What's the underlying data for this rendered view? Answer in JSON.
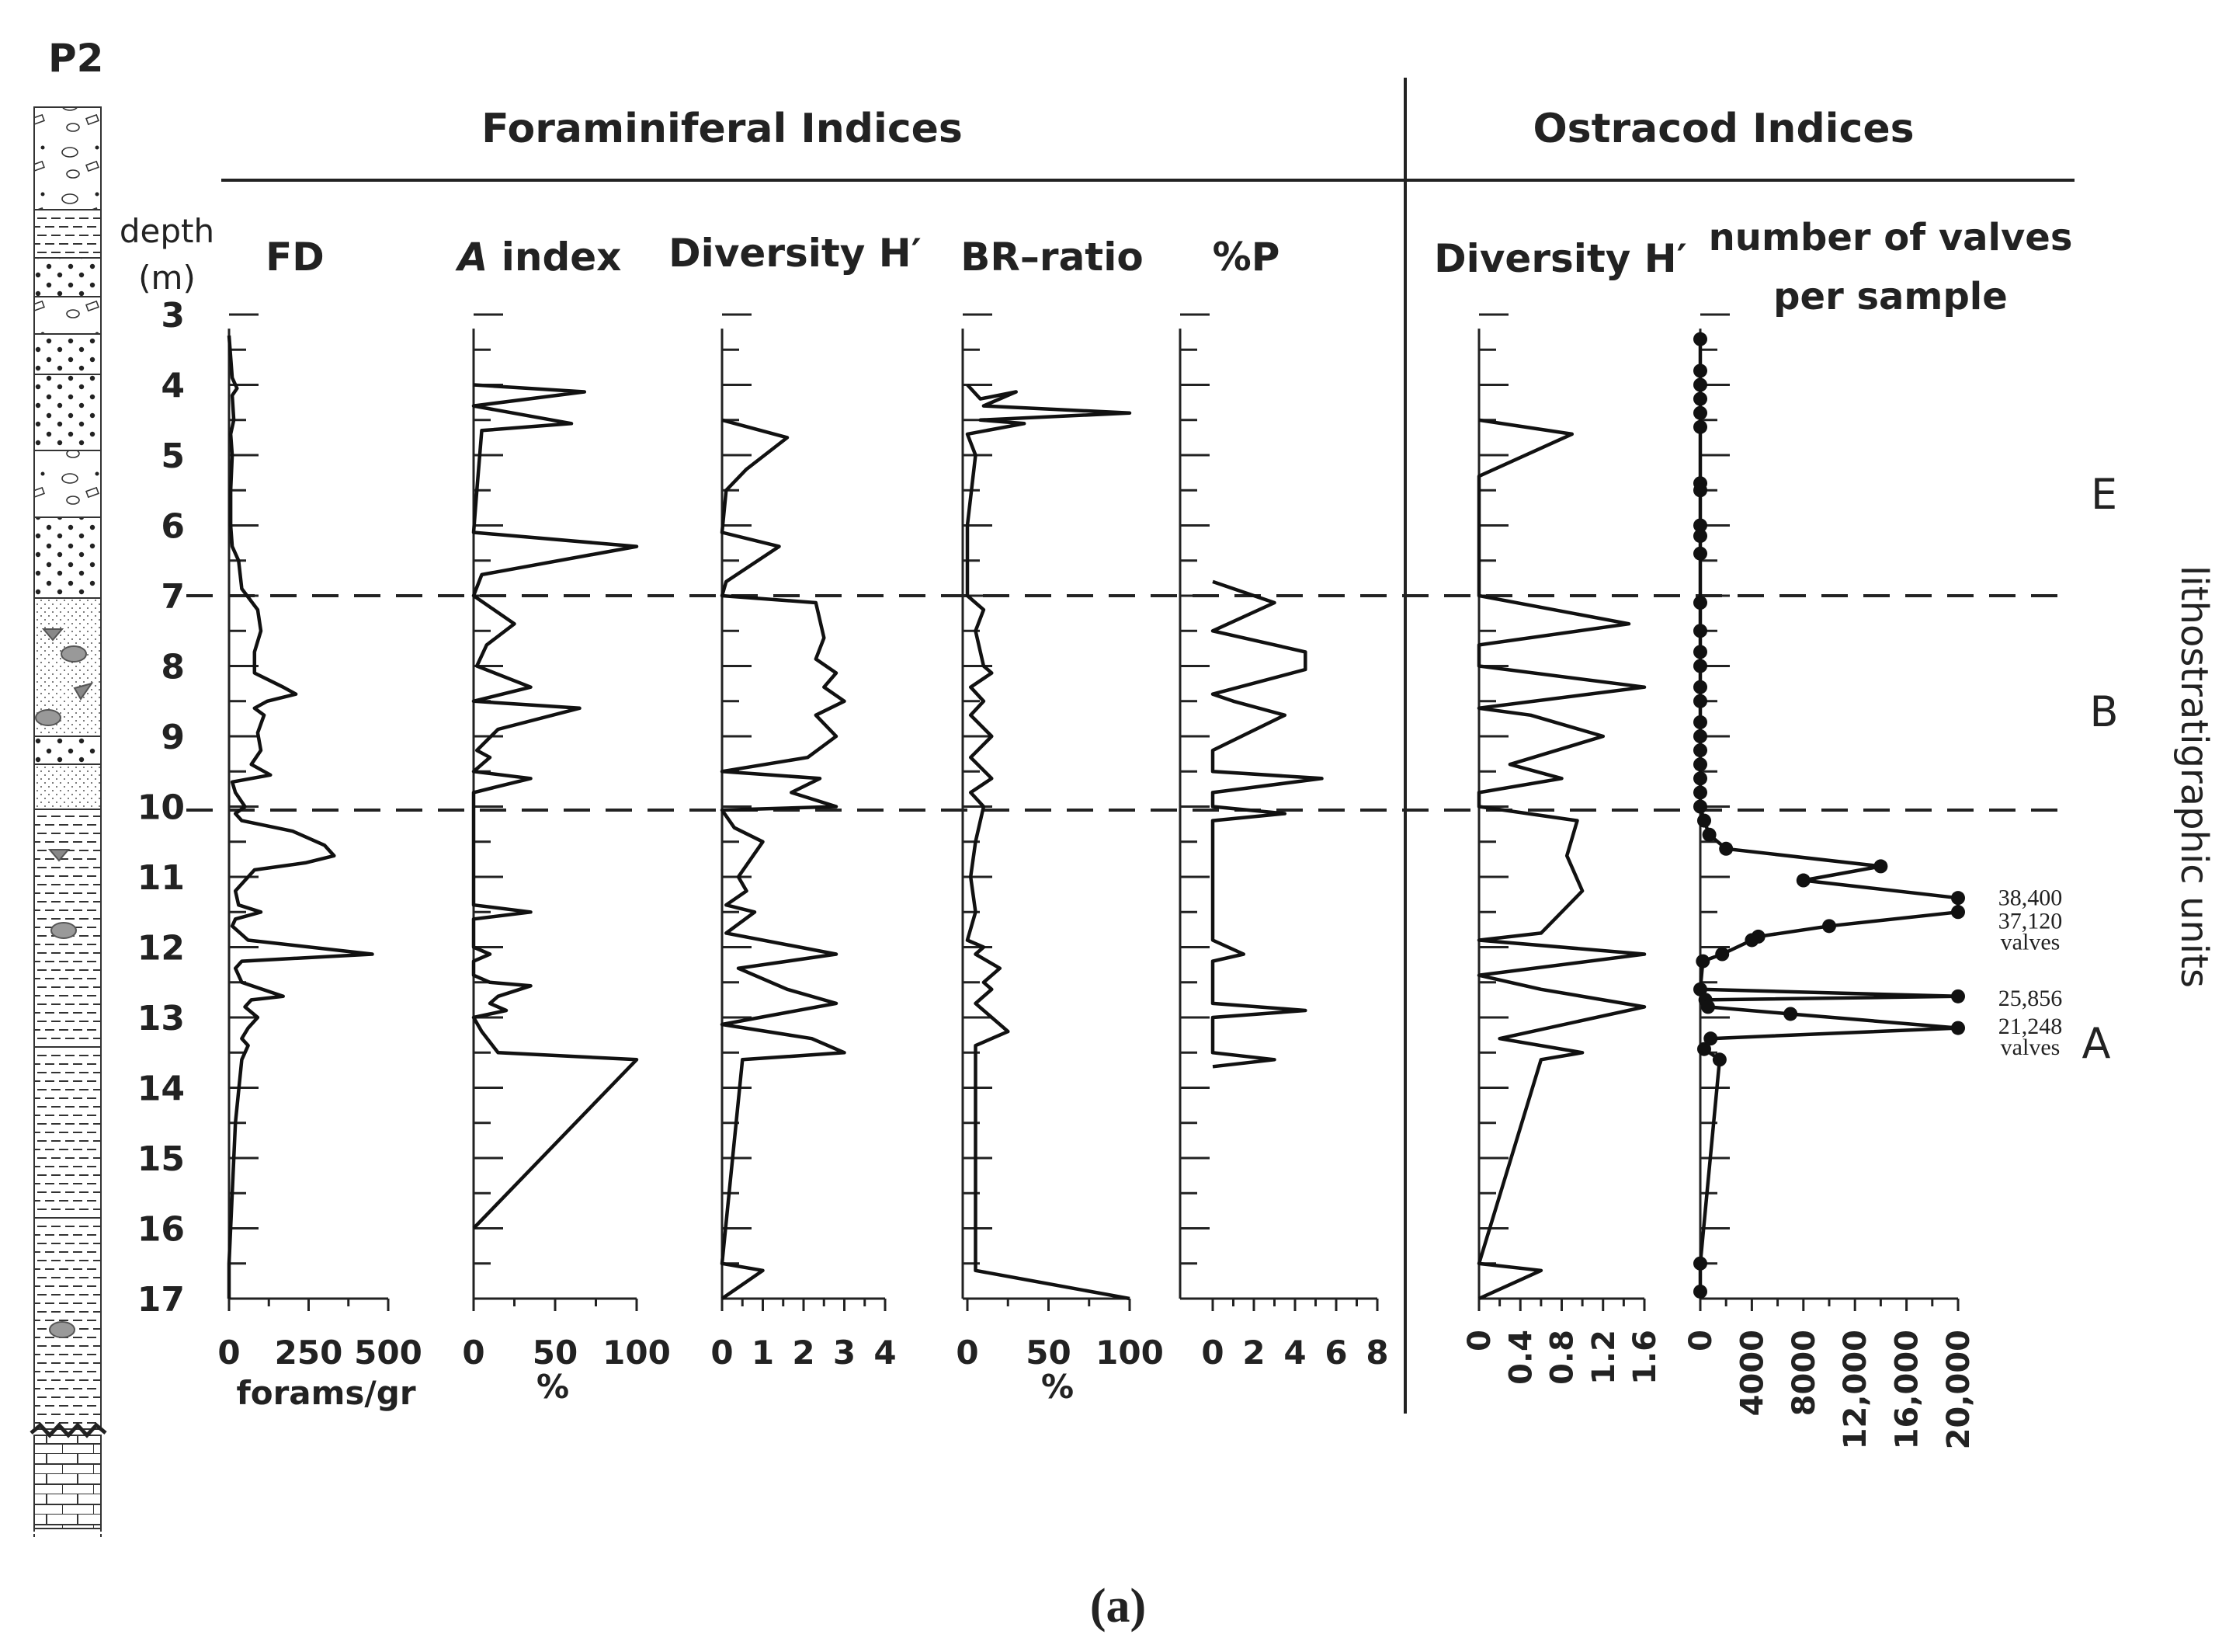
{
  "chart_data": {
    "type": "line",
    "panel_id": "P2",
    "caption": "(a)",
    "groups": [
      {
        "label": "Foraminiferal Indices"
      },
      {
        "label": "Ostracod Indices"
      }
    ],
    "depth_axis": {
      "label_line1": "depth",
      "label_line2": "(m)",
      "min": 3,
      "max": 17,
      "ticks": [
        3,
        4,
        5,
        6,
        7,
        8,
        9,
        10,
        11,
        12,
        13,
        14,
        15,
        16,
        17
      ]
    },
    "unit_boundaries": [
      7,
      10.05
    ],
    "units": [
      {
        "label": "E",
        "depth": 6.2
      },
      {
        "label": "B",
        "depth": 8.7
      },
      {
        "label": "A",
        "depth": 13.45
      }
    ],
    "units_label": "lithostratigraphic units",
    "series": [
      {
        "name": "FD",
        "title": "FD",
        "xlabel": "forams/gr",
        "xmin": 0,
        "xmax": 500,
        "ticks": [
          "0",
          "250",
          "500"
        ],
        "tick_values": [
          0,
          250,
          500
        ],
        "points": [
          [
            0,
            3.3
          ],
          [
            10,
            3.9
          ],
          [
            25,
            4.05
          ],
          [
            10,
            4.15
          ],
          [
            15,
            4.5
          ],
          [
            5,
            4.7
          ],
          [
            10,
            5.0
          ],
          [
            5,
            5.5
          ],
          [
            5,
            6.0
          ],
          [
            10,
            6.3
          ],
          [
            30,
            6.5
          ],
          [
            40,
            6.9
          ],
          [
            90,
            7.2
          ],
          [
            100,
            7.5
          ],
          [
            80,
            7.8
          ],
          [
            80,
            8.1
          ],
          [
            170,
            8.3
          ],
          [
            210,
            8.4
          ],
          [
            120,
            8.5
          ],
          [
            80,
            8.6
          ],
          [
            110,
            8.7
          ],
          [
            90,
            8.95
          ],
          [
            100,
            9.2
          ],
          [
            70,
            9.4
          ],
          [
            130,
            9.55
          ],
          [
            10,
            9.65
          ],
          [
            20,
            9.8
          ],
          [
            50,
            10.0
          ],
          [
            20,
            10.1
          ],
          [
            40,
            10.2
          ],
          [
            200,
            10.35
          ],
          [
            300,
            10.55
          ],
          [
            330,
            10.7
          ],
          [
            240,
            10.8
          ],
          [
            80,
            10.9
          ],
          [
            20,
            11.2
          ],
          [
            30,
            11.4
          ],
          [
            100,
            11.5
          ],
          [
            20,
            11.6
          ],
          [
            10,
            11.7
          ],
          [
            60,
            11.9
          ],
          [
            450,
            12.1
          ],
          [
            40,
            12.2
          ],
          [
            20,
            12.3
          ],
          [
            40,
            12.5
          ],
          [
            170,
            12.7
          ],
          [
            70,
            12.75
          ],
          [
            50,
            12.85
          ],
          [
            90,
            13.0
          ],
          [
            60,
            13.15
          ],
          [
            40,
            13.3
          ],
          [
            60,
            13.4
          ],
          [
            40,
            13.6
          ],
          [
            20,
            14.5
          ],
          [
            10,
            15.5
          ],
          [
            0,
            16.5
          ],
          [
            0,
            17.0
          ]
        ]
      },
      {
        "name": "A index",
        "title_prefix": "A",
        "title_rest": " index",
        "xlabel": "%",
        "xmin": 0,
        "xmax": 100,
        "ticks": [
          "0",
          "50",
          "100"
        ],
        "tick_values": [
          0,
          50,
          100
        ],
        "points": [
          [
            0,
            4.0
          ],
          [
            68,
            4.1
          ],
          [
            0,
            4.3
          ],
          [
            60,
            4.55
          ],
          [
            5,
            4.65
          ],
          [
            2,
            5.5
          ],
          [
            0,
            6.1
          ],
          [
            100,
            6.3
          ],
          [
            5,
            6.7
          ],
          [
            0,
            7.0
          ],
          [
            25,
            7.4
          ],
          [
            8,
            7.7
          ],
          [
            2,
            8.0
          ],
          [
            35,
            8.3
          ],
          [
            0,
            8.5
          ],
          [
            65,
            8.6
          ],
          [
            15,
            8.9
          ],
          [
            2,
            9.2
          ],
          [
            10,
            9.3
          ],
          [
            0,
            9.5
          ],
          [
            35,
            9.6
          ],
          [
            0,
            9.8
          ],
          [
            0,
            10.0
          ],
          [
            0,
            10.2
          ],
          [
            0,
            11.4
          ],
          [
            35,
            11.5
          ],
          [
            0,
            11.6
          ],
          [
            0,
            12.0
          ],
          [
            10,
            12.1
          ],
          [
            0,
            12.2
          ],
          [
            0,
            12.4
          ],
          [
            10,
            12.5
          ],
          [
            35,
            12.55
          ],
          [
            15,
            12.7
          ],
          [
            10,
            12.8
          ],
          [
            20,
            12.9
          ],
          [
            0,
            13.0
          ],
          [
            5,
            13.2
          ],
          [
            15,
            13.5
          ],
          [
            100,
            13.6
          ],
          [
            0,
            16.0
          ]
        ]
      },
      {
        "name": "Diversity H′ (foraminifera)",
        "title": "Diversity H′",
        "xmin": 0,
        "xmax": 4,
        "ticks": [
          "0",
          "1",
          "2",
          "3",
          "4"
        ],
        "tick_values": [
          0,
          1,
          2,
          3,
          4
        ],
        "points": [
          [
            0,
            4.5
          ],
          [
            1.6,
            4.75
          ],
          [
            0.6,
            5.2
          ],
          [
            0.1,
            5.5
          ],
          [
            0,
            6.1
          ],
          [
            1.4,
            6.3
          ],
          [
            0.1,
            6.8
          ],
          [
            0,
            7.0
          ],
          [
            2.3,
            7.1
          ],
          [
            2.5,
            7.6
          ],
          [
            2.3,
            7.9
          ],
          [
            2.8,
            8.1
          ],
          [
            2.5,
            8.3
          ],
          [
            3.0,
            8.5
          ],
          [
            2.3,
            8.7
          ],
          [
            2.8,
            9.0
          ],
          [
            2.1,
            9.3
          ],
          [
            0,
            9.5
          ],
          [
            2.4,
            9.6
          ],
          [
            1.7,
            9.8
          ],
          [
            2.8,
            10.0
          ],
          [
            0,
            10.05
          ],
          [
            0.3,
            10.3
          ],
          [
            1.0,
            10.5
          ],
          [
            0.4,
            11.0
          ],
          [
            0.6,
            11.2
          ],
          [
            0.1,
            11.4
          ],
          [
            0.8,
            11.5
          ],
          [
            0.1,
            11.8
          ],
          [
            2.8,
            12.1
          ],
          [
            0.4,
            12.3
          ],
          [
            1.6,
            12.6
          ],
          [
            2.5,
            12.75
          ],
          [
            2.8,
            12.8
          ],
          [
            0,
            13.1
          ],
          [
            2.2,
            13.3
          ],
          [
            3.0,
            13.5
          ],
          [
            0.5,
            13.6
          ],
          [
            0,
            16.5
          ],
          [
            1.0,
            16.6
          ],
          [
            0,
            17.0
          ]
        ]
      },
      {
        "name": "BR–ratio",
        "title": "BR–ratio",
        "xlabel": "%",
        "xmin": 0,
        "xmax": 100,
        "ticks": [
          "0",
          "50",
          "100"
        ],
        "tick_values": [
          0,
          50,
          100
        ],
        "points": [
          [
            0,
            4.0
          ],
          [
            8,
            4.2
          ],
          [
            30,
            4.1
          ],
          [
            10,
            4.3
          ],
          [
            100,
            4.4
          ],
          [
            8,
            4.5
          ],
          [
            35,
            4.55
          ],
          [
            0,
            4.7
          ],
          [
            5,
            5.0
          ],
          [
            0,
            6.0
          ],
          [
            0,
            7.0
          ],
          [
            10,
            7.2
          ],
          [
            5,
            7.5
          ],
          [
            10,
            8.0
          ],
          [
            15,
            8.1
          ],
          [
            2,
            8.3
          ],
          [
            10,
            8.5
          ],
          [
            2,
            8.7
          ],
          [
            15,
            9.0
          ],
          [
            2,
            9.3
          ],
          [
            15,
            9.6
          ],
          [
            2,
            9.8
          ],
          [
            10,
            10.0
          ],
          [
            5,
            10.5
          ],
          [
            2,
            11.0
          ],
          [
            5,
            11.5
          ],
          [
            0,
            11.9
          ],
          [
            10,
            12.0
          ],
          [
            5,
            12.1
          ],
          [
            20,
            12.3
          ],
          [
            10,
            12.5
          ],
          [
            15,
            12.6
          ],
          [
            5,
            12.8
          ],
          [
            25,
            13.2
          ],
          [
            5,
            13.4
          ],
          [
            5,
            16.6
          ],
          [
            100,
            17.0
          ]
        ]
      },
      {
        "name": "%P",
        "title": "%P",
        "xmin": 0,
        "xmax": 8,
        "ticks": [
          "0",
          "2",
          "4",
          "6",
          "8"
        ],
        "tick_values": [
          0,
          2,
          4,
          6,
          8
        ],
        "points": [
          [
            0,
            6.8
          ],
          [
            3,
            7.1
          ],
          [
            0,
            7.5
          ],
          [
            4.5,
            7.8
          ],
          [
            4.5,
            8.05
          ],
          [
            0,
            8.4
          ],
          [
            1,
            8.5
          ],
          [
            3.5,
            8.7
          ],
          [
            0,
            9.2
          ],
          [
            0,
            9.5
          ],
          [
            5.3,
            9.6
          ],
          [
            0,
            9.8
          ],
          [
            0,
            10.0
          ],
          [
            3.5,
            10.1
          ],
          [
            0,
            10.2
          ],
          [
            0,
            11.9
          ],
          [
            1.5,
            12.1
          ],
          [
            0,
            12.2
          ],
          [
            0,
            12.8
          ],
          [
            4.5,
            12.9
          ],
          [
            0,
            13.0
          ],
          [
            0,
            13.5
          ],
          [
            3,
            13.6
          ],
          [
            0,
            13.7
          ]
        ]
      },
      {
        "name": "Diversity H′ (ostracods)",
        "title": "Diversity H′",
        "xmin": 0,
        "xmax": 1.6,
        "ticks": [
          "0",
          "0.4",
          "0.8",
          "1.2",
          "1.6"
        ],
        "tick_values": [
          0,
          0.4,
          0.8,
          1.2,
          1.6
        ],
        "points": [
          [
            0,
            4.5
          ],
          [
            0.9,
            4.7
          ],
          [
            0,
            5.3
          ],
          [
            0,
            7.0
          ],
          [
            1.45,
            7.4
          ],
          [
            0,
            7.7
          ],
          [
            0,
            8.0
          ],
          [
            1.6,
            8.3
          ],
          [
            0,
            8.6
          ],
          [
            0.5,
            8.7
          ],
          [
            1.2,
            9.0
          ],
          [
            0.3,
            9.4
          ],
          [
            0.8,
            9.6
          ],
          [
            0,
            9.8
          ],
          [
            0,
            10.0
          ],
          [
            0.95,
            10.2
          ],
          [
            0.85,
            10.7
          ],
          [
            1.0,
            11.2
          ],
          [
            0.6,
            11.8
          ],
          [
            0,
            11.9
          ],
          [
            1.6,
            12.1
          ],
          [
            0,
            12.4
          ],
          [
            0.6,
            12.6
          ],
          [
            1.6,
            12.85
          ],
          [
            0.2,
            13.3
          ],
          [
            1.0,
            13.5
          ],
          [
            0.6,
            13.6
          ],
          [
            0,
            16.5
          ],
          [
            0.6,
            16.6
          ],
          [
            0,
            17.0
          ]
        ]
      },
      {
        "name": "number of valves per sample",
        "title_line1": "number of valves",
        "title_line2": "per sample",
        "xmin": 0,
        "xmax": 20000,
        "ticks": [
          "0",
          "4000",
          "8000",
          "12,000",
          "16,000",
          "20,000"
        ],
        "tick_values": [
          0,
          4000,
          8000,
          12000,
          16000,
          20000
        ],
        "points": [
          [
            0,
            3.35
          ],
          [
            0,
            3.8
          ],
          [
            0,
            4.0
          ],
          [
            0,
            4.2
          ],
          [
            0,
            4.4
          ],
          [
            0,
            4.6
          ],
          [
            0,
            5.4
          ],
          [
            0,
            5.5
          ],
          [
            0,
            6.0
          ],
          [
            0,
            6.15
          ],
          [
            0,
            6.4
          ],
          [
            0,
            7.1
          ],
          [
            0,
            7.5
          ],
          [
            0,
            7.8
          ],
          [
            0,
            8.0
          ],
          [
            0,
            8.3
          ],
          [
            0,
            8.5
          ],
          [
            0,
            8.8
          ],
          [
            0,
            9.0
          ],
          [
            0,
            9.2
          ],
          [
            0,
            9.4
          ],
          [
            0,
            9.6
          ],
          [
            0,
            9.8
          ],
          [
            0,
            10.0
          ],
          [
            300,
            10.2
          ],
          [
            700,
            10.4
          ],
          [
            2000,
            10.6
          ],
          [
            14000,
            10.85
          ],
          [
            8000,
            11.05
          ],
          [
            20000,
            11.3
          ],
          [
            20000,
            11.5
          ],
          [
            10000,
            11.7
          ],
          [
            4500,
            11.85
          ],
          [
            4000,
            11.9
          ],
          [
            1700,
            12.1
          ],
          [
            200,
            12.2
          ],
          [
            0,
            12.6
          ],
          [
            20000,
            12.7
          ],
          [
            400,
            12.75
          ],
          [
            600,
            12.85
          ],
          [
            7000,
            12.95
          ],
          [
            20000,
            13.15
          ],
          [
            800,
            13.3
          ],
          [
            300,
            13.45
          ],
          [
            1500,
            13.6
          ],
          [
            0,
            16.5
          ],
          [
            0,
            16.9
          ]
        ],
        "annotations": [
          {
            "text": "38,400",
            "depth": 11.27
          },
          {
            "text": "37,120",
            "depth": 11.6
          },
          {
            "text": "valves",
            "depth": 11.9
          },
          {
            "text": "25,856",
            "depth": 12.7
          },
          {
            "text": "21,248",
            "depth": 13.1
          },
          {
            "text": "valves",
            "depth": 13.4
          }
        ]
      }
    ]
  }
}
